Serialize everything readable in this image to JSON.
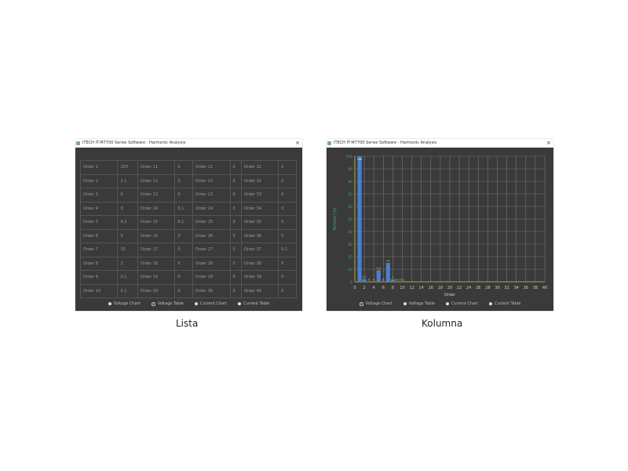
{
  "window_title": "ITECH IT-M7700 Series Software - Harmonic Analysis",
  "close_icon": "close-icon",
  "table": {
    "rows": [
      [
        {
          "o": "Order 1",
          "v": "100"
        },
        {
          "o": "Order 11",
          "v": "0"
        },
        {
          "o": "Order 21",
          "v": "0"
        },
        {
          "o": "Order 31",
          "v": "0"
        }
      ],
      [
        {
          "o": "Order 2",
          "v": "2.1"
        },
        {
          "o": "Order 12",
          "v": "0"
        },
        {
          "o": "Order 22",
          "v": "0"
        },
        {
          "o": "Order 32",
          "v": "0"
        }
      ],
      [
        {
          "o": "Order 3",
          "v": "0"
        },
        {
          "o": "Order 13",
          "v": "0"
        },
        {
          "o": "Order 23",
          "v": "0"
        },
        {
          "o": "Order 33",
          "v": "0"
        }
      ],
      [
        {
          "o": "Order 4",
          "v": "0"
        },
        {
          "o": "Order 14",
          "v": "0.1"
        },
        {
          "o": "Order 24",
          "v": "0"
        },
        {
          "o": "Order 34",
          "v": "0"
        }
      ],
      [
        {
          "o": "Order 5",
          "v": "9.2"
        },
        {
          "o": "Order 15",
          "v": "0.1"
        },
        {
          "o": "Order 25",
          "v": "0"
        },
        {
          "o": "Order 35",
          "v": "0"
        }
      ],
      [
        {
          "o": "Order 6",
          "v": "0"
        },
        {
          "o": "Order 16",
          "v": "0"
        },
        {
          "o": "Order 26",
          "v": "0"
        },
        {
          "o": "Order 36",
          "v": "0"
        }
      ],
      [
        {
          "o": "Order 7",
          "v": "15"
        },
        {
          "o": "Order 17",
          "v": "0"
        },
        {
          "o": "Order 27",
          "v": "0"
        },
        {
          "o": "Order 37",
          "v": "0.1"
        }
      ],
      [
        {
          "o": "Order 8",
          "v": "2"
        },
        {
          "o": "Order 18",
          "v": "0"
        },
        {
          "o": "Order 28",
          "v": "0"
        },
        {
          "o": "Order 38",
          "v": "0"
        }
      ],
      [
        {
          "o": "Order 9",
          "v": "0.1"
        },
        {
          "o": "Order 19",
          "v": "0"
        },
        {
          "o": "Order 29",
          "v": "0"
        },
        {
          "o": "Order 39",
          "v": "0"
        }
      ],
      [
        {
          "o": "Order 10",
          "v": "0.1"
        },
        {
          "o": "Order 20",
          "v": "0"
        },
        {
          "o": "Order 30",
          "v": "0"
        },
        {
          "o": "Order 40",
          "v": "0"
        }
      ]
    ]
  },
  "radios": [
    "Voltage Chart",
    "Voltage Table",
    "Current Chart",
    "Current Table"
  ],
  "left_selected": 1,
  "right_selected": 0,
  "captions": {
    "left": "Lista",
    "right": "Kolumna"
  },
  "chart_data": {
    "type": "bar",
    "xlabel": "Order",
    "ylabel": "Percent (%)",
    "ylim": [
      0,
      100
    ],
    "yticks": [
      0,
      10,
      20,
      30,
      40,
      50,
      60,
      70,
      80,
      90,
      100
    ],
    "xlim": [
      0,
      40
    ],
    "xticks": [
      0,
      2,
      4,
      6,
      8,
      10,
      12,
      14,
      16,
      18,
      20,
      22,
      24,
      26,
      28,
      30,
      32,
      34,
      36,
      38,
      40
    ],
    "x": [
      1,
      2,
      3,
      4,
      5,
      6,
      7,
      8,
      9,
      10
    ],
    "values": [
      100,
      2.1,
      0,
      0,
      9.2,
      0,
      15,
      2,
      0.1,
      0.1
    ],
    "grid": true,
    "bar_color": "#4a7fd0",
    "axis_color": "#c8b84a"
  }
}
